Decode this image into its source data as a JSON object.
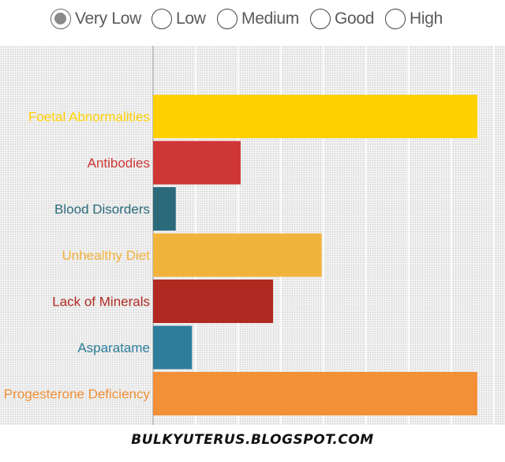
{
  "filter": {
    "options": [
      {
        "label": "Very Low",
        "checked": true
      },
      {
        "label": "Low",
        "checked": false
      },
      {
        "label": "Medium",
        "checked": false
      },
      {
        "label": "Good",
        "checked": false
      },
      {
        "label": "High",
        "checked": false
      }
    ]
  },
  "chart_data": {
    "type": "bar",
    "orientation": "horizontal",
    "title": "",
    "xlabel": "",
    "ylabel": "",
    "xlim": [
      0,
      100
    ],
    "grid": true,
    "categories": [
      "Foetal Abnormalities",
      "Antibodies",
      "Blood Disorders",
      "Unhealthy Diet",
      "Lack of Minerals",
      "Asparatame",
      "Progesterone Deficiency"
    ],
    "values": [
      100,
      27,
      7,
      52,
      37,
      12,
      100
    ],
    "colors": [
      "#FFD000",
      "#CF3636",
      "#2A6A7B",
      "#F2B33D",
      "#B02A22",
      "#2E7E9B",
      "#F29037"
    ]
  },
  "footer": {
    "text": "BULKYUTERUS.BLOGSPOT.COM"
  }
}
